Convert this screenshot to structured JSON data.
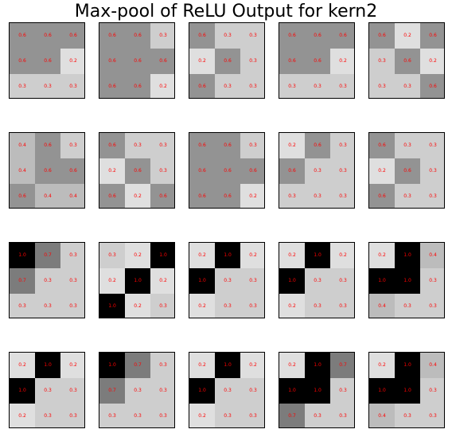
{
  "chart_data": {
    "type": "heatmap",
    "title": "Max-pool of ReLU Output for kern2",
    "rows": 4,
    "cols": 5,
    "cmap": "gray_r",
    "value_range": [
      0,
      1
    ],
    "panels": [
      [
        [
          0.6,
          0.6,
          0.6
        ],
        [
          0.6,
          0.6,
          0.2
        ],
        [
          0.3,
          0.3,
          0.3
        ]
      ],
      [
        [
          0.6,
          0.6,
          0.3
        ],
        [
          0.6,
          0.6,
          0.6
        ],
        [
          0.6,
          0.6,
          0.2
        ]
      ],
      [
        [
          0.6,
          0.3,
          0.3
        ],
        [
          0.2,
          0.6,
          0.3
        ],
        [
          0.6,
          0.3,
          0.3
        ]
      ],
      [
        [
          0.6,
          0.6,
          0.6
        ],
        [
          0.6,
          0.6,
          0.2
        ],
        [
          0.3,
          0.3,
          0.3
        ]
      ],
      [
        [
          0.6,
          0.2,
          0.6
        ],
        [
          0.3,
          0.6,
          0.2
        ],
        [
          0.3,
          0.3,
          0.6
        ]
      ],
      [
        [
          0.4,
          0.6,
          0.3
        ],
        [
          0.4,
          0.6,
          0.6
        ],
        [
          0.6,
          0.4,
          0.4
        ]
      ],
      [
        [
          0.6,
          0.3,
          0.3
        ],
        [
          0.2,
          0.6,
          0.3
        ],
        [
          0.6,
          0.2,
          0.6
        ]
      ],
      [
        [
          0.6,
          0.6,
          0.3
        ],
        [
          0.6,
          0.6,
          0.6
        ],
        [
          0.6,
          0.6,
          0.2
        ]
      ],
      [
        [
          0.2,
          0.6,
          0.3
        ],
        [
          0.6,
          0.3,
          0.3
        ],
        [
          0.3,
          0.3,
          0.3
        ]
      ],
      [
        [
          0.6,
          0.3,
          0.3
        ],
        [
          0.2,
          0.6,
          0.3
        ],
        [
          0.6,
          0.3,
          0.3
        ]
      ],
      [
        [
          1.0,
          0.7,
          0.3
        ],
        [
          0.7,
          0.3,
          0.3
        ],
        [
          0.3,
          0.3,
          0.3
        ]
      ],
      [
        [
          0.3,
          0.2,
          1.0
        ],
        [
          0.2,
          1.0,
          0.2
        ],
        [
          1.0,
          0.2,
          0.3
        ]
      ],
      [
        [
          0.2,
          1.0,
          0.2
        ],
        [
          1.0,
          0.3,
          0.3
        ],
        [
          0.2,
          0.3,
          0.3
        ]
      ],
      [
        [
          0.2,
          1.0,
          0.2
        ],
        [
          1.0,
          0.3,
          0.3
        ],
        [
          0.2,
          0.3,
          0.3
        ]
      ],
      [
        [
          0.2,
          1.0,
          0.4
        ],
        [
          1.0,
          1.0,
          0.3
        ],
        [
          0.4,
          0.3,
          0.3
        ]
      ],
      [
        [
          0.2,
          1.0,
          0.2
        ],
        [
          1.0,
          0.3,
          0.3
        ],
        [
          0.2,
          0.3,
          0.3
        ]
      ],
      [
        [
          1.0,
          0.7,
          0.3
        ],
        [
          0.7,
          0.3,
          0.3
        ],
        [
          0.3,
          0.3,
          0.3
        ]
      ],
      [
        [
          0.2,
          1.0,
          0.2
        ],
        [
          1.0,
          0.3,
          0.3
        ],
        [
          0.2,
          0.3,
          0.3
        ]
      ],
      [
        [
          0.2,
          1.0,
          0.7
        ],
        [
          1.0,
          1.0,
          0.3
        ],
        [
          0.7,
          0.3,
          0.3
        ]
      ],
      [
        [
          0.2,
          1.0,
          0.4
        ],
        [
          1.0,
          1.0,
          0.3
        ],
        [
          0.4,
          0.3,
          0.3
        ]
      ]
    ],
    "label_color": "#ff0000"
  }
}
